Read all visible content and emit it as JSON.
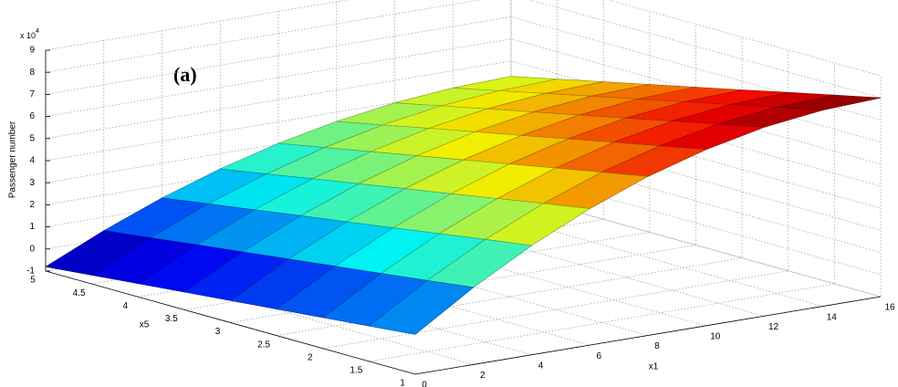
{
  "chart_data": {
    "type": "surface",
    "annotation": "(a)",
    "zlabel": "Passenger number",
    "xlabel": "x1",
    "ylabel": "x5",
    "scale_label": "x 10",
    "scale_exponent": "4",
    "colormap": "jet",
    "grid": true,
    "x": [
      0,
      2,
      4,
      6,
      8,
      10,
      12,
      14,
      16
    ],
    "y": [
      1,
      1.5,
      2,
      2.5,
      3,
      3.5,
      4,
      4.5,
      5
    ],
    "z": [
      [
        0.8,
        2.49,
        3.95,
        5.18,
        6.2,
        6.98,
        7.55,
        7.88,
        8.0
      ],
      [
        0.6,
        2.22,
        3.64,
        4.83,
        5.81,
        6.56,
        7.11,
        7.43,
        7.54
      ],
      [
        0.4,
        1.96,
        3.32,
        4.47,
        5.41,
        6.14,
        6.66,
        6.97,
        7.08
      ],
      [
        0.2,
        1.7,
        3.0,
        4.1,
        5.01,
        5.71,
        6.21,
        6.51,
        6.61
      ],
      [
        0,
        1.44,
        2.69,
        3.75,
        4.61,
        5.28,
        5.77,
        6.05,
        6.15
      ],
      [
        -0.2,
        1.18,
        2.38,
        3.39,
        4.22,
        4.86,
        5.32,
        5.6,
        5.69
      ],
      [
        -0.4,
        0.92,
        2.06,
        3.03,
        3.82,
        4.44,
        4.88,
        5.14,
        5.23
      ],
      [
        -0.6,
        0.65,
        1.75,
        2.66,
        3.42,
        4.0,
        4.43,
        4.67,
        4.76
      ],
      [
        -0.8,
        0.39,
        1.43,
        2.31,
        3.03,
        3.58,
        3.98,
        4.22,
        4.3
      ]
    ],
    "xlim": [
      0,
      16
    ],
    "xticks": [
      0,
      2,
      4,
      6,
      8,
      10,
      12,
      14,
      16
    ],
    "ylim": [
      1,
      5
    ],
    "yticks": [
      1,
      1.5,
      2,
      2.5,
      3,
      3.5,
      4,
      4.5,
      5
    ],
    "zlim": [
      -1,
      9
    ],
    "zticks": [
      -1,
      0,
      1,
      2,
      3,
      4,
      5,
      6,
      7,
      8,
      9
    ]
  }
}
